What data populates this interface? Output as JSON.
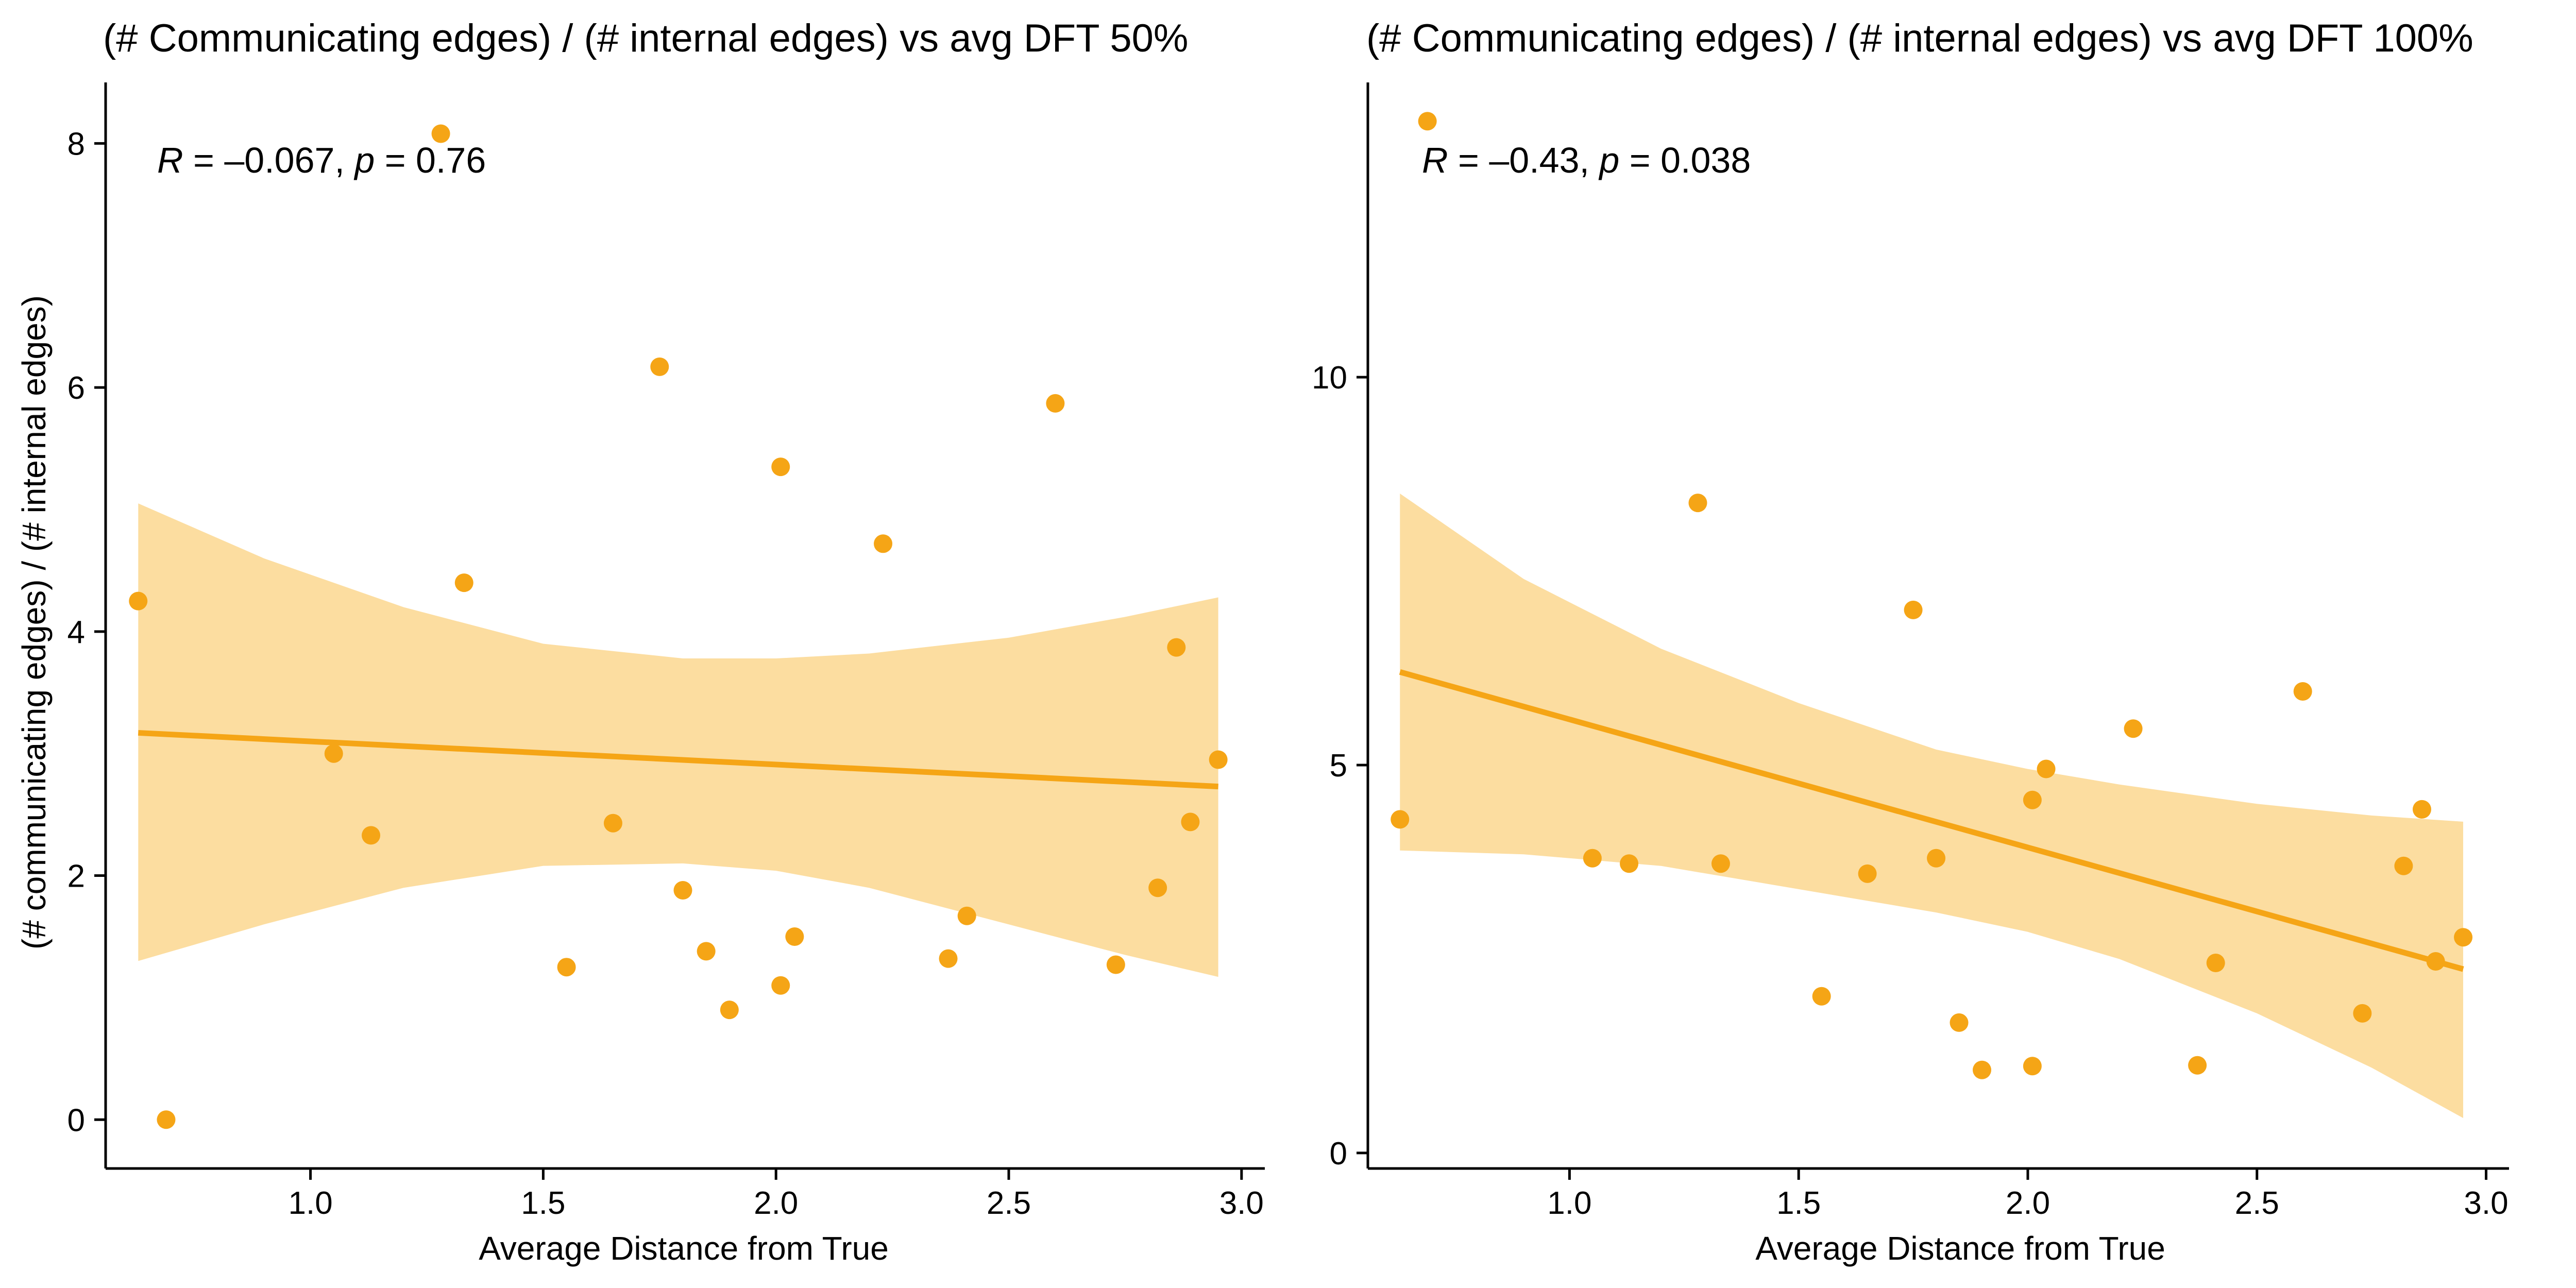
{
  "colors": {
    "point": "#F5A516",
    "line": "#F5A516",
    "band": "#FCDDA0",
    "axis": "#000000"
  },
  "chart_data": [
    {
      "type": "scatter",
      "title": "(# Communicating edges) / (# internal edges) vs avg DFT 50%",
      "xlabel": "Average Distance from True",
      "ylabel": "(# communicating edges) / (# internal edges)",
      "xlim": [
        0.56,
        3.05
      ],
      "ylim": [
        -0.4,
        8.5
      ],
      "xticks": [
        1.0,
        1.5,
        2.0,
        2.5,
        3.0
      ],
      "xtick_labels": [
        "1.0",
        "1.5",
        "2.0",
        "2.5",
        "3.0"
      ],
      "yticks": [
        0,
        2,
        4,
        6,
        8
      ],
      "ytick_labels": [
        "0",
        "2",
        "4",
        "6",
        "8"
      ],
      "grid": false,
      "annotation": {
        "R_label": "R",
        "R_value": " = –0.067, ",
        "p_label": "p",
        "p_value": " = 0.76"
      },
      "points": [
        [
          0.63,
          4.25
        ],
        [
          0.69,
          0.0
        ],
        [
          1.05,
          3.0
        ],
        [
          1.13,
          2.33
        ],
        [
          1.28,
          8.08
        ],
        [
          1.33,
          4.4
        ],
        [
          1.55,
          1.25
        ],
        [
          1.65,
          2.43
        ],
        [
          1.75,
          6.17
        ],
        [
          1.8,
          1.88
        ],
        [
          1.85,
          1.38
        ],
        [
          1.9,
          0.9
        ],
        [
          2.01,
          5.35
        ],
        [
          2.01,
          1.1
        ],
        [
          2.04,
          1.5
        ],
        [
          2.23,
          4.72
        ],
        [
          2.37,
          1.32
        ],
        [
          2.41,
          1.67
        ],
        [
          2.6,
          5.87
        ],
        [
          2.73,
          1.27
        ],
        [
          2.82,
          1.9
        ],
        [
          2.86,
          3.87
        ],
        [
          2.89,
          2.44
        ],
        [
          2.95,
          2.95
        ]
      ],
      "fit": {
        "x": [
          0.63,
          2.95
        ],
        "y": [
          3.17,
          2.73
        ]
      },
      "band": {
        "x": [
          0.63,
          0.9,
          1.2,
          1.5,
          1.8,
          2.0,
          2.2,
          2.5,
          2.75,
          2.95
        ],
        "upper": [
          5.05,
          4.6,
          4.2,
          3.9,
          3.78,
          3.78,
          3.82,
          3.95,
          4.12,
          4.28
        ],
        "lower": [
          1.3,
          1.6,
          1.9,
          2.08,
          2.1,
          2.04,
          1.9,
          1.6,
          1.35,
          1.17
        ]
      }
    },
    {
      "type": "scatter",
      "title": "(# Communicating edges) / (# internal edges) vs avg DFT 100%",
      "xlabel": "Average Distance from True",
      "ylabel": "",
      "xlim": [
        0.56,
        3.05
      ],
      "ylim": [
        -0.2,
        13.8
      ],
      "xticks": [
        1.0,
        1.5,
        2.0,
        2.5,
        3.0
      ],
      "xtick_labels": [
        "1.0",
        "1.5",
        "2.0",
        "2.5",
        "3.0"
      ],
      "yticks": [
        0,
        5,
        10
      ],
      "ytick_labels": [
        "0",
        "5",
        "10"
      ],
      "grid": false,
      "annotation": {
        "R_label": "R",
        "R_value": " = –0.43, ",
        "p_label": "p",
        "p_value": " = 0.038"
      },
      "points": [
        [
          0.63,
          4.3
        ],
        [
          0.69,
          13.3
        ],
        [
          1.05,
          3.8
        ],
        [
          1.13,
          3.73
        ],
        [
          1.28,
          8.38
        ],
        [
          1.33,
          3.73
        ],
        [
          1.55,
          2.02
        ],
        [
          1.65,
          3.6
        ],
        [
          1.75,
          7.0
        ],
        [
          1.8,
          3.8
        ],
        [
          1.85,
          1.68
        ],
        [
          1.9,
          1.07
        ],
        [
          2.01,
          4.55
        ],
        [
          2.01,
          1.12
        ],
        [
          2.04,
          4.95
        ],
        [
          2.23,
          5.47
        ],
        [
          2.37,
          1.13
        ],
        [
          2.41,
          2.45
        ],
        [
          2.6,
          5.95
        ],
        [
          2.73,
          1.8
        ],
        [
          2.82,
          3.7
        ],
        [
          2.86,
          4.43
        ],
        [
          2.89,
          2.47
        ],
        [
          2.95,
          2.78
        ]
      ],
      "fit": {
        "x": [
          0.63,
          2.95
        ],
        "y": [
          6.2,
          2.37
        ]
      },
      "band": {
        "x": [
          0.63,
          0.9,
          1.2,
          1.5,
          1.8,
          2.0,
          2.2,
          2.5,
          2.75,
          2.95
        ],
        "upper": [
          8.5,
          7.4,
          6.5,
          5.8,
          5.2,
          4.95,
          4.75,
          4.5,
          4.35,
          4.27
        ],
        "lower": [
          3.9,
          3.85,
          3.7,
          3.4,
          3.1,
          2.85,
          2.5,
          1.8,
          1.1,
          0.45
        ]
      }
    }
  ]
}
